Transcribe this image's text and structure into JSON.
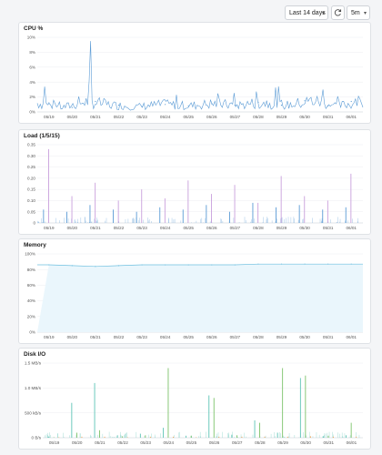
{
  "toolbar": {
    "range_label": "Last 14 days",
    "interval_label": "5m",
    "range_icon": "chevron-down-icon",
    "refresh_icon": "refresh-icon"
  },
  "x_dates": [
    "05/19",
    "05/20",
    "05/21",
    "05/22",
    "05/23",
    "05/24",
    "05/25",
    "05/26",
    "05/27",
    "05/28",
    "05/29",
    "05/30",
    "05/31",
    "06/01"
  ],
  "chart_data": [
    {
      "type": "line",
      "title": "CPU %",
      "color": "#5b9bd5",
      "ylim": [
        0,
        10
      ],
      "y_ticks": [
        "0%",
        "2%",
        "4%",
        "6%",
        "8%",
        "10%"
      ],
      "grid": true,
      "x": [
        "05/19",
        "05/20",
        "05/21",
        "05/22",
        "05/23",
        "05/24",
        "05/25",
        "05/26",
        "05/27",
        "05/28",
        "05/29",
        "05/30",
        "05/31",
        "06/01"
      ],
      "series": [
        {
          "values": [
            1.2,
            0.6,
            1.4,
            0.9,
            0.7,
            1.0,
            0.8,
            1.1,
            0.9,
            1.3,
            0.9,
            1.5,
            0.8,
            1.4
          ]
        }
      ],
      "annotations": [
        {
          "x": "05/21",
          "y": 9.5
        },
        {
          "x": "05/19",
          "y": 3.4
        },
        {
          "x": "05/31",
          "y": 3.0
        }
      ]
    },
    {
      "type": "bar",
      "title": "Load (1/5/15)",
      "colors": [
        "#5b9bd5",
        "#c9a0dc"
      ],
      "ylim": [
        0,
        0.35
      ],
      "y_ticks": [
        "0",
        "0.05",
        "0.10",
        "0.15",
        "0.20",
        "0.25",
        "0.30",
        "0.35"
      ],
      "grid": true,
      "x": [
        "05/19",
        "05/20",
        "05/21",
        "05/22",
        "05/23",
        "05/24",
        "05/25",
        "05/26",
        "05/27",
        "05/28",
        "05/29",
        "05/30",
        "05/31",
        "06/01"
      ],
      "series": [
        {
          "values": [
            0.06,
            0.05,
            0.08,
            0.06,
            0.05,
            0.07,
            0.06,
            0.08,
            0.05,
            0.09,
            0.07,
            0.08,
            0.06,
            0.07
          ]
        },
        {
          "values": [
            0.33,
            0.12,
            0.18,
            0.1,
            0.15,
            0.11,
            0.19,
            0.13,
            0.17,
            0.09,
            0.21,
            0.12,
            0.1,
            0.22
          ]
        }
      ]
    },
    {
      "type": "area",
      "title": "Memory",
      "color": "#6fc0e0",
      "fill": "#eaf6fc",
      "ylim": [
        0,
        100
      ],
      "y_ticks": [
        "0%",
        "20%",
        "40%",
        "60%",
        "80%",
        "100%"
      ],
      "grid": true,
      "x": [
        "05/19",
        "05/20",
        "05/21",
        "05/22",
        "05/23",
        "05/24",
        "05/25",
        "05/26",
        "05/27",
        "05/28",
        "05/29",
        "05/30",
        "05/31",
        "06/01"
      ],
      "series": [
        {
          "values": [
            86,
            85,
            84,
            85,
            86,
            86,
            86,
            86,
            86,
            87,
            87,
            87,
            87,
            87
          ]
        }
      ]
    },
    {
      "type": "bar",
      "title": "Disk I/O",
      "colors": [
        "#5ec4b6",
        "#7cc36a",
        "#f0a050"
      ],
      "ylim": [
        0,
        1.5
      ],
      "y_ticks": [
        "0 B/s",
        "500 kB/s",
        "1.0 MB/s",
        "1.5 MB/s"
      ],
      "grid": true,
      "x": [
        "05/19",
        "05/20",
        "05/21",
        "05/22",
        "05/23",
        "05/24",
        "05/25",
        "05/26",
        "05/27",
        "05/28",
        "05/29",
        "05/30",
        "05/31",
        "06/01"
      ],
      "series": [
        {
          "values": [
            0.02,
            0.7,
            1.1,
            0.05,
            0.08,
            0.2,
            0.04,
            0.85,
            0.06,
            0.35,
            0.1,
            1.2,
            0.03,
            0.05
          ]
        },
        {
          "values": [
            0.01,
            0.1,
            0.15,
            0.03,
            0.05,
            1.4,
            0.04,
            0.8,
            0.05,
            0.3,
            1.4,
            1.25,
            0.04,
            0.3
          ]
        },
        {
          "values": [
            0.01,
            0.02,
            0.02,
            0.01,
            0.02,
            0.02,
            0.01,
            0.02,
            0.02,
            0.02,
            0.02,
            0.03,
            0.02,
            0.02
          ]
        }
      ]
    }
  ]
}
